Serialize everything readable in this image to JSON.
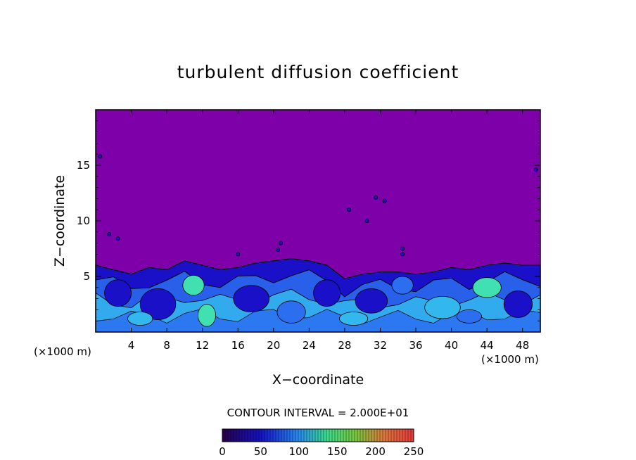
{
  "chart_data": {
    "type": "heatmap",
    "title": "turbulent diffusion coefficient",
    "xlabel": "X−coordinate",
    "ylabel": "Z−coordinate",
    "x_unit_left": "(×1000 m)",
    "x_unit_right": "(×1000 m)",
    "xlim": [
      0,
      50
    ],
    "ylim": [
      0,
      20
    ],
    "x_ticks": [
      4,
      8,
      12,
      16,
      20,
      24,
      28,
      32,
      36,
      40,
      44,
      48
    ],
    "y_ticks": [
      5,
      10,
      15
    ],
    "contour_interval_text": "CONTOUR INTERVAL = 2.000E+01",
    "colorbar": {
      "min": 0,
      "max": 250,
      "ticks": [
        0,
        50,
        100,
        150,
        200,
        250
      ]
    },
    "background_value": 0,
    "boundary_layer_top": [
      [
        0,
        6.0
      ],
      [
        2,
        5.6
      ],
      [
        4,
        5.2
      ],
      [
        6,
        5.8
      ],
      [
        8,
        5.6
      ],
      [
        10,
        6.4
      ],
      [
        12,
        6.0
      ],
      [
        14,
        5.6
      ],
      [
        16,
        5.8
      ],
      [
        18,
        6.2
      ],
      [
        20,
        6.4
      ],
      [
        22,
        6.6
      ],
      [
        24,
        6.4
      ],
      [
        26,
        6.0
      ],
      [
        28,
        4.8
      ],
      [
        30,
        5.2
      ],
      [
        32,
        5.4
      ],
      [
        34,
        5.4
      ],
      [
        36,
        5.2
      ],
      [
        38,
        5.4
      ],
      [
        40,
        5.8
      ],
      [
        42,
        5.6
      ],
      [
        44,
        6.0
      ],
      [
        46,
        6.2
      ],
      [
        48,
        6.0
      ],
      [
        50,
        6.0
      ]
    ],
    "colors": {
      "background": "#7e00a8",
      "low": "#1a10c8",
      "mid": "#2b6ef0",
      "high": "#33b8ee",
      "peak": "#40e0b0"
    }
  }
}
